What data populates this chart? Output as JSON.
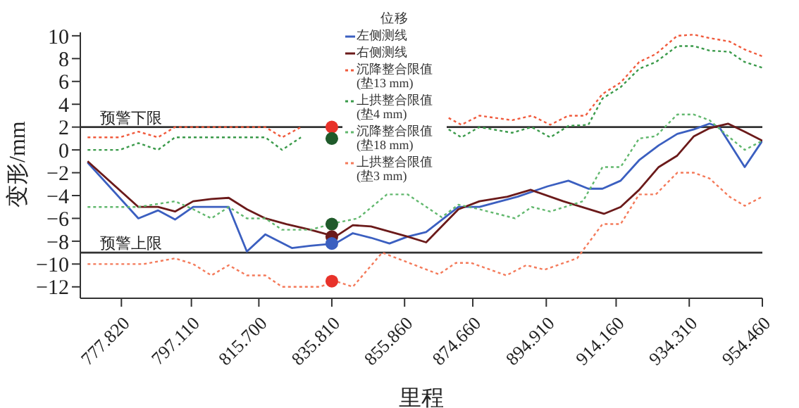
{
  "chart_data": {
    "type": "line",
    "xlabel": "里程",
    "ylabel": "变形/mm",
    "legend_title": "位移",
    "legend": "top",
    "xlim": [
      766.5,
      954.46
    ],
    "xticks": [
      {
        "value": 777.82,
        "label": "777.820"
      },
      {
        "value": 797.11,
        "label": "797.110"
      },
      {
        "value": 815.7,
        "label": "815.700"
      },
      {
        "value": 835.81,
        "label": "835.810"
      },
      {
        "value": 855.86,
        "label": "855.860"
      },
      {
        "value": 874.66,
        "label": "874.660"
      },
      {
        "value": 894.91,
        "label": "894.910"
      },
      {
        "value": 914.16,
        "label": "914.160"
      },
      {
        "value": 934.31,
        "label": "934.310"
      },
      {
        "value": 954.46,
        "label": "954.460"
      }
    ],
    "ylim": [
      -13,
      10.3
    ],
    "yticks": [
      -12,
      -10,
      -8,
      -6,
      -4,
      -2,
      0,
      2,
      4,
      6,
      8,
      10
    ],
    "grid": false,
    "ref_lines": [
      {
        "axis": "y",
        "value": 2,
        "label": "预警下限",
        "color": "#333333"
      },
      {
        "axis": "y",
        "value": -9,
        "label": "预警上限",
        "color": "#333333"
      }
    ],
    "series": [
      {
        "name": "左侧测线",
        "color": "#3b5fc0",
        "line_style": "solid",
        "x": [
          768.5,
          782.5,
          787.9,
          792.6,
          797.6,
          807.4,
          812.4,
          817.5,
          824.8,
          829.9,
          836.8,
          841.6,
          846.6,
          851.7,
          856.7,
          861.8,
          870.7,
          876.5,
          887.0,
          895.2,
          901.0,
          906.5,
          910.4,
          915.4,
          920.5,
          925.9,
          931.0,
          935.6,
          939.9,
          942.6,
          949.6,
          954.46
        ],
        "values": [
          -1.1,
          -6.0,
          -5.3,
          -6.1,
          -5.0,
          -5.0,
          -8.9,
          -7.4,
          -8.6,
          -8.4,
          -8.2,
          -7.3,
          -7.7,
          -8.2,
          -7.6,
          -7.2,
          -5.0,
          -5.0,
          -4.1,
          -3.2,
          -2.7,
          -3.4,
          -3.4,
          -2.7,
          -0.9,
          0.4,
          1.4,
          1.8,
          2.3,
          2.0,
          -1.5,
          0.8
        ]
      },
      {
        "name": "右侧测线",
        "color": "#6b1a1a",
        "line_style": "solid",
        "x": [
          768.5,
          782.5,
          787.9,
          792.6,
          797.6,
          802.6,
          807.4,
          812.4,
          817.5,
          823.3,
          829.9,
          836.8,
          841.6,
          846.6,
          856.7,
          861.8,
          870.7,
          876.5,
          884.2,
          890.6,
          899.6,
          910.8,
          915.4,
          920.5,
          925.9,
          931.0,
          935.6,
          939.9,
          945.0,
          949.6,
          954.46
        ],
        "values": [
          -1.0,
          -5.0,
          -5.0,
          -5.4,
          -4.5,
          -4.3,
          -4.2,
          -5.2,
          -6.0,
          -6.5,
          -7.0,
          -7.6,
          -6.6,
          -6.7,
          -7.6,
          -8.1,
          -5.2,
          -4.5,
          -4.1,
          -3.5,
          -4.5,
          -5.6,
          -5.0,
          -3.5,
          -1.5,
          -0.5,
          1.2,
          1.9,
          2.3,
          1.6,
          0.8
        ]
      },
      {
        "name": "沉降整合限值(垫13 mm)",
        "color": "#f05a3c",
        "line_style": "dotted",
        "x": [
          768.5,
          777.4,
          782.5,
          787.9,
          792.6,
          817.5,
          822.1,
          827.3,
          850.0,
          868.0,
          871.5,
          876.5,
          885.5,
          890.9,
          896.0,
          901.0,
          905.7,
          910.4,
          915.4,
          920.5,
          925.1,
          931.0,
          935.6,
          939.9,
          945.4,
          949.6,
          954.46
        ],
        "values": [
          1.1,
          1.1,
          1.6,
          1.1,
          2.0,
          2.0,
          1.1,
          2.0,
          null,
          2.8,
          2.2,
          3.0,
          2.6,
          3.0,
          2.2,
          3.0,
          3.0,
          4.9,
          5.9,
          7.7,
          8.4,
          10.0,
          10.1,
          9.8,
          9.5,
          8.8,
          8.2
        ]
      },
      {
        "name": "上拱整合限值(垫4 mm)",
        "color": "#3a9a4a",
        "line_style": "dotted",
        "x": [
          768.5,
          777.4,
          782.5,
          787.9,
          792.6,
          817.5,
          822.1,
          827.3,
          850.0,
          868.0,
          871.5,
          876.5,
          885.5,
          890.9,
          896.0,
          901.0,
          906.5,
          910.4,
          915.4,
          920.5,
          925.1,
          931.0,
          935.6,
          939.9,
          945.4,
          949.6,
          954.46
        ],
        "values": [
          0,
          0,
          0.6,
          0,
          1.1,
          1.1,
          0,
          1.1,
          null,
          1.8,
          1.1,
          2.0,
          1.5,
          2.0,
          1.1,
          2.1,
          2.2,
          4.5,
          5.5,
          7.1,
          7.7,
          9.1,
          9.1,
          8.7,
          8.6,
          7.7,
          7.2
        ]
      },
      {
        "name": "沉降整合限值(垫18 mm)",
        "color": "#62b86e",
        "line_style": "dotted",
        "x": [
          768.5,
          782.5,
          792.6,
          797.6,
          802.6,
          807.4,
          812.4,
          817.5,
          822.1,
          829.9,
          836.8,
          843.0,
          851.0,
          856.7,
          866.1,
          870.7,
          876.5,
          886.3,
          890.9,
          896.0,
          905.0,
          910.4,
          915.4,
          920.5,
          925.1,
          931.0,
          935.6,
          939.9,
          945.4,
          949.6,
          954.46
        ],
        "values": [
          -5.0,
          -5.0,
          -4.5,
          -5.2,
          -6.0,
          -5.0,
          -6.0,
          -6.0,
          -7.0,
          -7.0,
          -6.4,
          -6.0,
          -3.9,
          -3.9,
          -5.9,
          -4.8,
          -5.2,
          -6.0,
          -5.0,
          -5.4,
          -4.5,
          -1.5,
          -1.5,
          1.0,
          1.2,
          3.1,
          3.1,
          2.6,
          1.1,
          0,
          0.8
        ]
      },
      {
        "name": "上拱整合限值(垫3 mm)",
        "color": "#f47a5a",
        "line_style": "dotted",
        "x": [
          768.5,
          784.0,
          792.6,
          797.6,
          802.6,
          807.4,
          812.4,
          817.5,
          822.1,
          832.5,
          836.8,
          841.6,
          849.7,
          865.3,
          870.0,
          874.2,
          883.9,
          889.4,
          894.4,
          903.4,
          910.4,
          915.4,
          920.5,
          925.1,
          931.0,
          935.6,
          939.9,
          945.4,
          949.6,
          954.46
        ],
        "values": [
          -10.0,
          -10.0,
          -9.5,
          -10.0,
          -11.0,
          -10.1,
          -11.0,
          -11.0,
          -12.0,
          -12.0,
          -11.5,
          -12.0,
          -9.0,
          -10.9,
          -9.9,
          -9.9,
          -11.0,
          -10.1,
          -10.5,
          -9.5,
          -6.5,
          -6.5,
          -3.9,
          -3.9,
          -2.0,
          -2.0,
          -2.5,
          -4.1,
          -4.9,
          -4.1
        ]
      },
      {
        "type": "scatter",
        "x": [
          835.81,
          835.81,
          835.81,
          835.81,
          835.81,
          835.81
        ],
        "values": [
          2.0,
          1.0,
          -6.5,
          -7.6,
          -8.2,
          -11.5
        ],
        "colors": [
          "#e8322a",
          "#1f5a2a",
          "#1f5a2a",
          "#6b1a1a",
          "#3b5fc0",
          "#e8322a"
        ]
      }
    ]
  }
}
